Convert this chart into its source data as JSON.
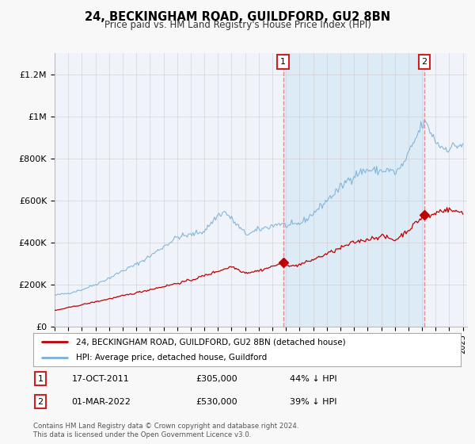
{
  "title": "24, BECKINGHAM ROAD, GUILDFORD, GU2 8BN",
  "subtitle": "Price paid vs. HM Land Registry's House Price Index (HPI)",
  "footer": "Contains HM Land Registry data © Crown copyright and database right 2024.\nThis data is licensed under the Open Government Licence v3.0.",
  "legend_line1": "24, BECKINGHAM ROAD, GUILDFORD, GU2 8BN (detached house)",
  "legend_line2": "HPI: Average price, detached house, Guildford",
  "annotation1_label": "1",
  "annotation1_date": "17-OCT-2011",
  "annotation1_price": "£305,000",
  "annotation1_hpi": "44% ↓ HPI",
  "annotation1_year": 2011.79,
  "annotation1_value": 305000,
  "annotation2_label": "2",
  "annotation2_date": "01-MAR-2022",
  "annotation2_price": "£530,000",
  "annotation2_hpi": "39% ↓ HPI",
  "annotation2_year": 2022.17,
  "annotation2_value": 530000,
  "hpi_color": "#7ab0d8",
  "hpi_fill_color": "#d6e8f7",
  "price_color": "#c00000",
  "vline_color": "#e88080",
  "background_color": "#f8f8f8",
  "plot_background": "#f0f4fa",
  "grid_color": "#cccccc",
  "ylim": [
    0,
    1300000
  ],
  "xlim_start": 1995.0,
  "xlim_end": 2025.3
}
